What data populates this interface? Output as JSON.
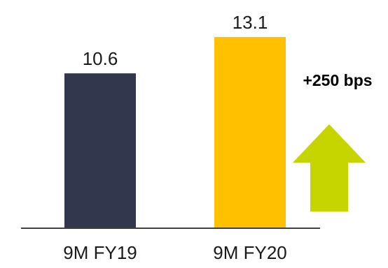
{
  "chart_data": {
    "type": "bar",
    "categories": [
      "9M FY19",
      "9M FY20"
    ],
    "values": [
      10.6,
      13.1
    ],
    "value_labels": [
      "10.6",
      "13.1"
    ],
    "bar_colors": [
      "#32374d",
      "#ffc000"
    ],
    "title": "",
    "xlabel": "",
    "ylabel": "",
    "ylim": [
      0,
      13.1
    ],
    "grid": false,
    "legend": "none",
    "annotation": {
      "text": "+250 bps",
      "icon": "up-arrow-icon",
      "color": "#c6d400"
    }
  }
}
